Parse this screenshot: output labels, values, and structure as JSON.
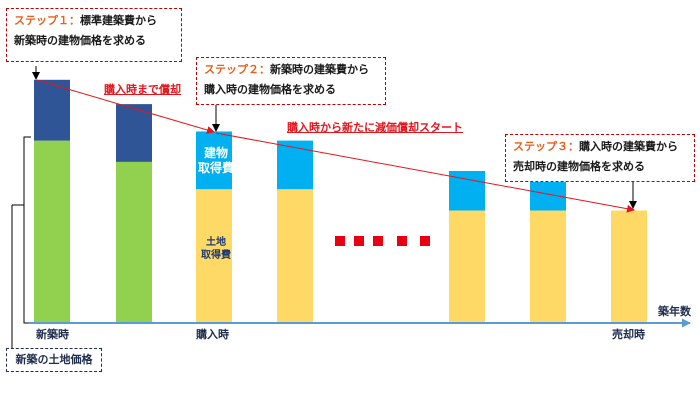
{
  "step1": {
    "step": "ステップ１：",
    "text1": "標準建築費から",
    "text2": "新築時の建物価格を求める"
  },
  "step2": {
    "step": "ステップ２：",
    "text1": "新築時の建築費から",
    "text2": "購入時の建物価格を求める"
  },
  "step3": {
    "step": "ステップ３：",
    "text1": "購入時の建築費から",
    "text2": "売却時の建物価格を求める"
  },
  "red_labels": {
    "until_purchase": "購入時まで償却",
    "after_purchase": "購入時から新たに減価償却スタート"
  },
  "bar_labels": {
    "building_cost": "建物\n取得費",
    "land_cost": "土地\n取得費"
  },
  "axis": {
    "x_title": "築年数",
    "new_build": "新築時",
    "purchase": "購入時",
    "sale": "売却時"
  },
  "land_price_label": "新築の土地価格",
  "colors": {
    "land_green": "#92d050",
    "building_navy": "#2f5597",
    "land_yellow": "#ffd966",
    "building_cyan": "#00b0f0",
    "axis": "#5b9bd5",
    "red": "#e8141c"
  },
  "chart_data": {
    "type": "bar",
    "stacked": true,
    "ellipsis_between_bars_4_and_5": true,
    "bars": [
      {
        "period": "新築時",
        "land": 60,
        "building": 20,
        "phase": "new"
      },
      {
        "period": "",
        "land": 53,
        "building": 19,
        "phase": "new"
      },
      {
        "period": "購入時",
        "land": 44,
        "building": 19,
        "phase": "purchase"
      },
      {
        "period": "",
        "land": 44,
        "building": 16,
        "phase": "purchase"
      },
      {
        "period": "",
        "land": 37,
        "building": 13,
        "phase": "purchase"
      },
      {
        "period": "",
        "land": 37,
        "building": 10,
        "phase": "purchase"
      },
      {
        "period": "売却時",
        "land": 37,
        "building": 0,
        "phase": "purchase"
      }
    ]
  }
}
